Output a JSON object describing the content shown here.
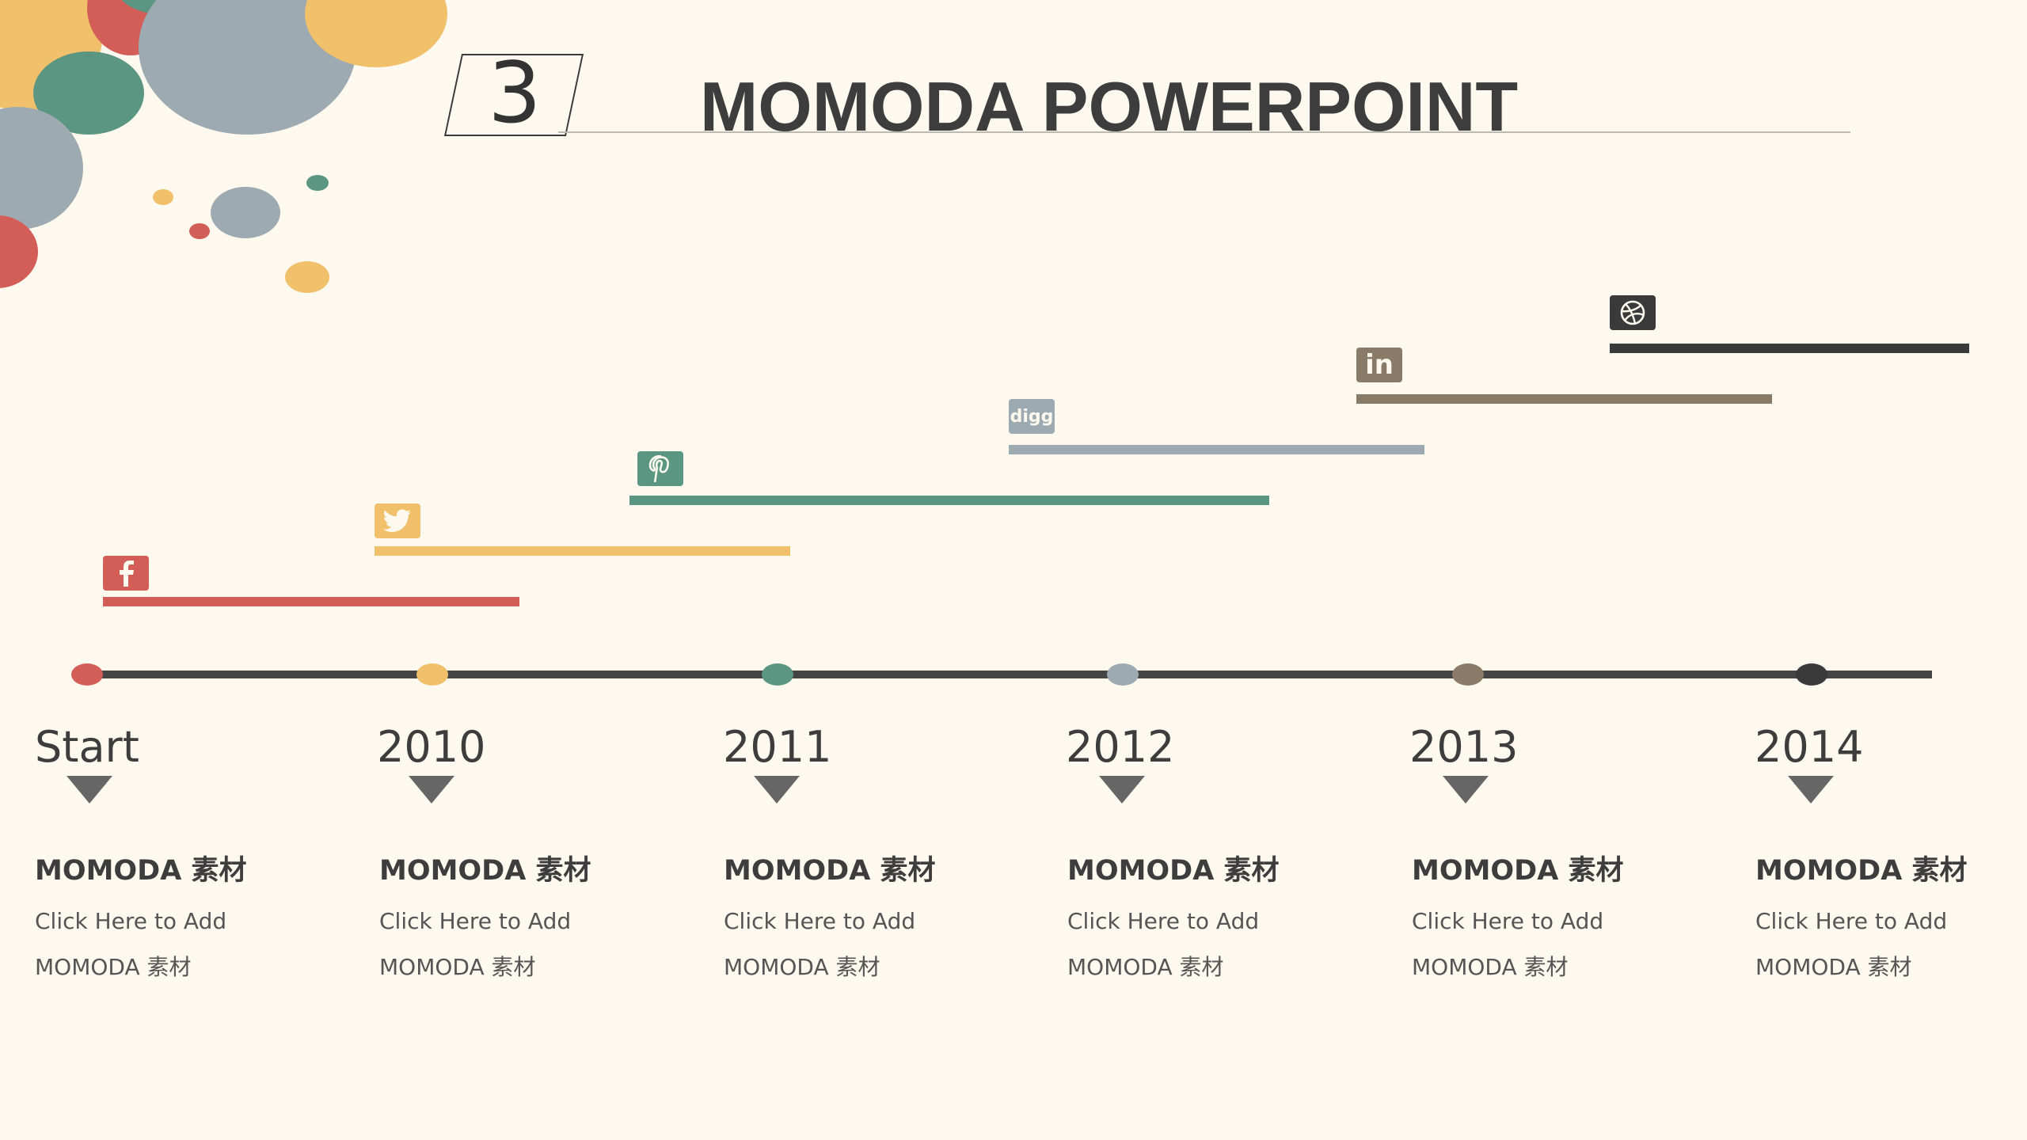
{
  "slide": {
    "number": "3",
    "title": "MOMODA POWERPOINT"
  },
  "colors": {
    "background": "#fdf9ee",
    "red": "#d35e58",
    "yellow": "#f0c06a",
    "teal": "#5a9682",
    "grey_blue": "#9eaab2",
    "brown": "#8a7a68",
    "dark": "#3a3a3a",
    "timeline": "#444444"
  },
  "timeline": {
    "points": [
      {
        "label": "Start",
        "heading": "MOMODA 素材",
        "line1": "Click Here to Add",
        "line2": "MOMODA 素材"
      },
      {
        "label": "2010",
        "heading": "MOMODA 素材",
        "line1": "Click Here to Add",
        "line2": "MOMODA 素材"
      },
      {
        "label": "2011",
        "heading": "MOMODA 素材",
        "line1": "Click Here to Add",
        "line2": "MOMODA 素材"
      },
      {
        "label": "2012",
        "heading": "MOMODA 素材",
        "line1": "Click Here to Add",
        "line2": "MOMODA 素材"
      },
      {
        "label": "2013",
        "heading": "MOMODA 素材",
        "line1": "Click Here to Add",
        "line2": "MOMODA 素材"
      },
      {
        "label": "2014",
        "heading": "MOMODA 素材",
        "line1": "Click Here to Add",
        "line2": "MOMODA 素材"
      }
    ],
    "social_bars": [
      {
        "icon": "facebook-icon",
        "color": "#d35e58"
      },
      {
        "icon": "twitter-icon",
        "color": "#f0c06a"
      },
      {
        "icon": "pinterest-icon",
        "color": "#5a9682"
      },
      {
        "icon": "digg-icon",
        "color": "#9eaab2",
        "icon_text": "digg"
      },
      {
        "icon": "linkedin-icon",
        "color": "#8a7a68",
        "icon_text": "in"
      },
      {
        "icon": "dribbble-icon",
        "color": "#3a3a3a"
      }
    ]
  }
}
